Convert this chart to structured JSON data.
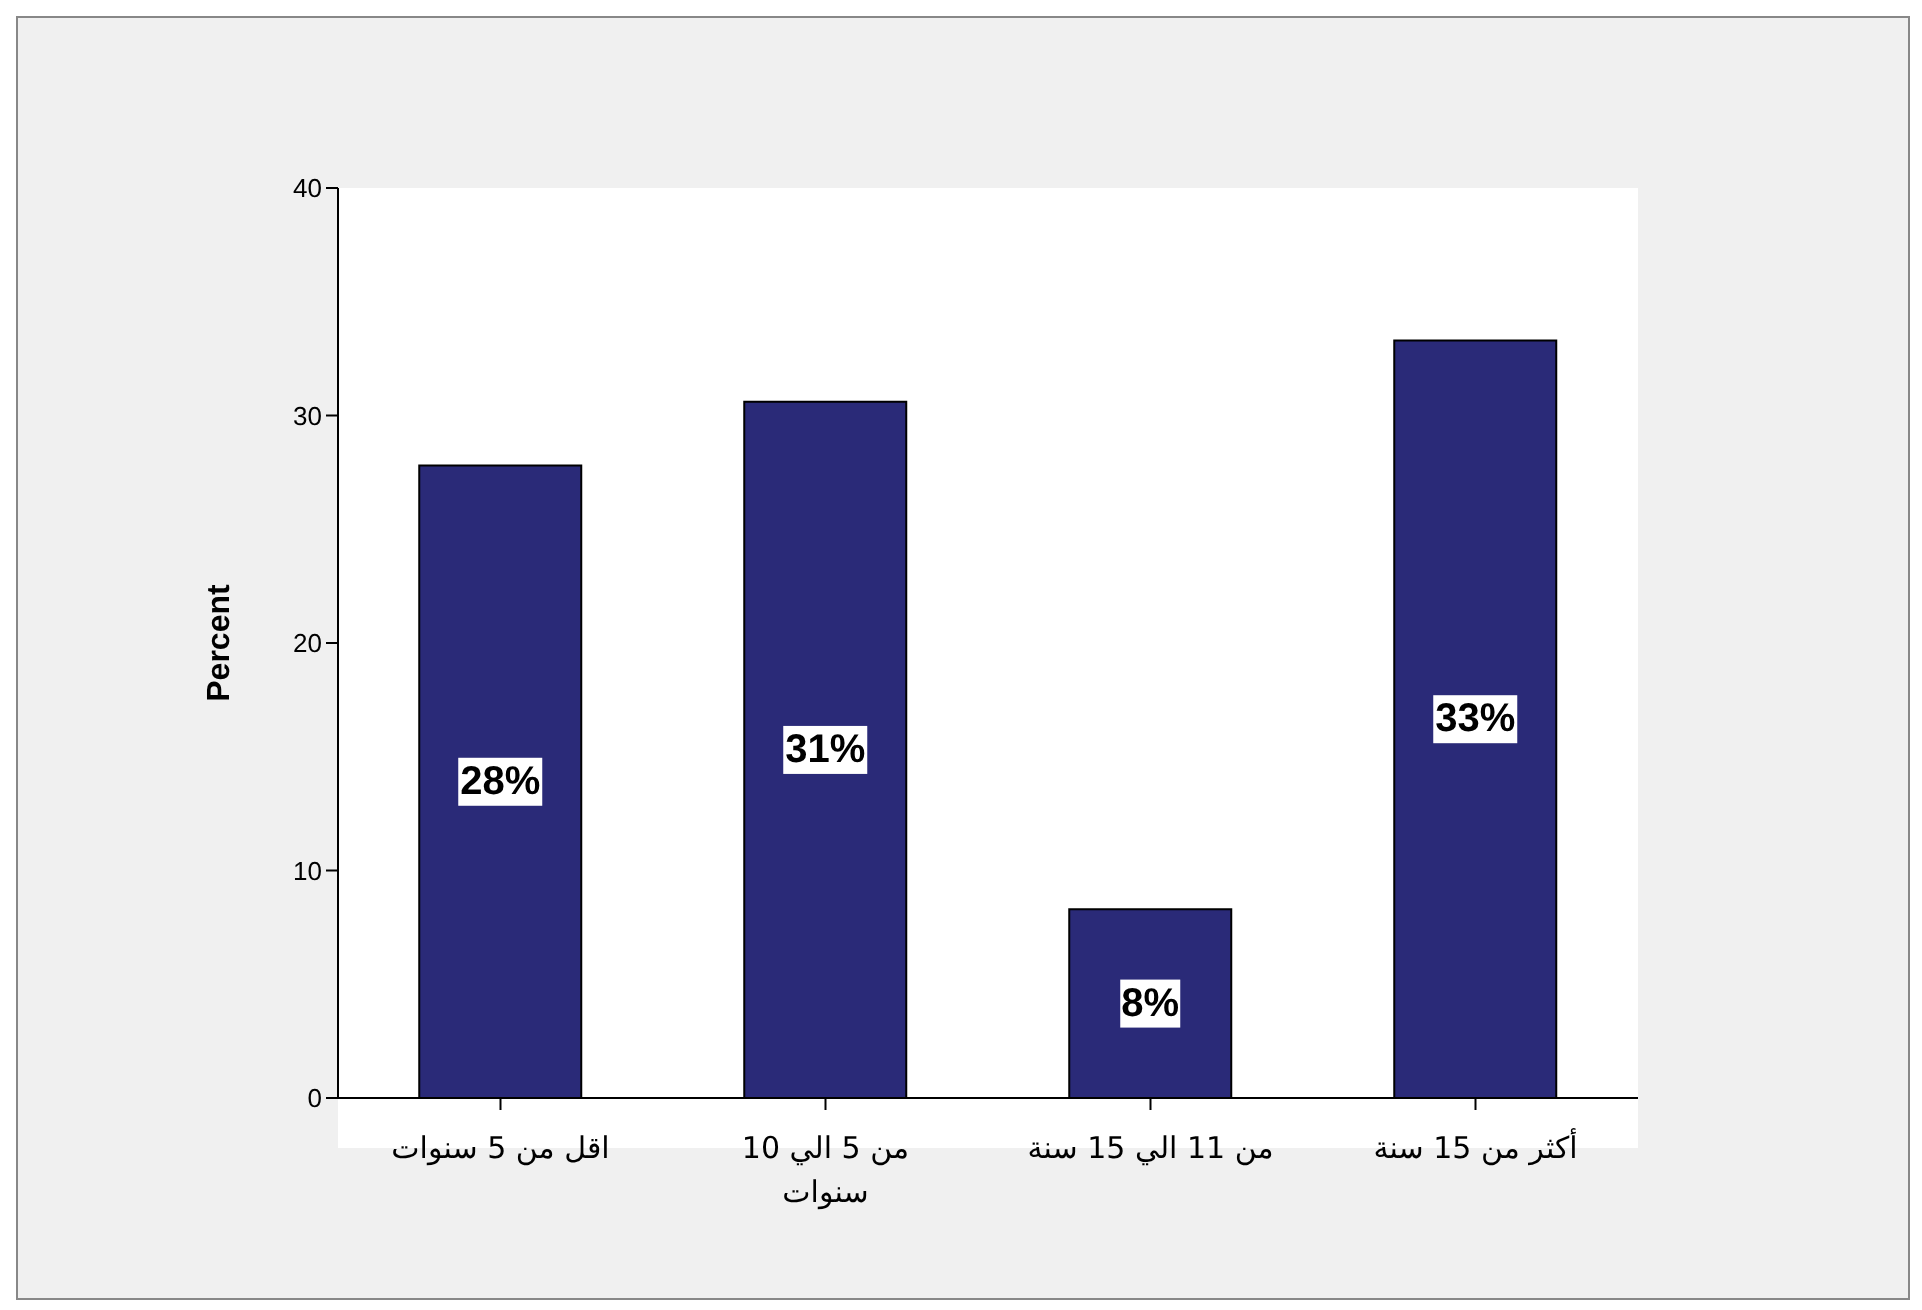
{
  "chart_data": {
    "type": "bar",
    "ylabel": "Percent",
    "categories": [
      "اقل من 5 سنوات",
      "من 5 الي 10 سنوات",
      "من 11 الي 15 سنة",
      "أكثر من 15 سنة"
    ],
    "values": [
      27.8,
      30.6,
      8.3,
      33.3
    ],
    "value_labels": [
      "28%",
      "31%",
      "8%",
      "33%"
    ],
    "color": "#2a2a78",
    "ylim": [
      0,
      40
    ],
    "yticks": [
      0,
      10,
      20,
      30,
      40
    ]
  }
}
